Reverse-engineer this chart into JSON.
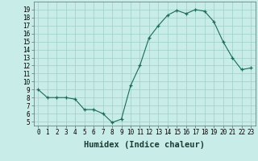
{
  "x": [
    0,
    1,
    2,
    3,
    4,
    5,
    6,
    7,
    8,
    9,
    10,
    11,
    12,
    13,
    14,
    15,
    16,
    17,
    18,
    19,
    20,
    21,
    22,
    23
  ],
  "y": [
    9.0,
    8.0,
    8.0,
    8.0,
    7.8,
    6.5,
    6.5,
    6.0,
    4.9,
    5.3,
    9.5,
    12.0,
    15.5,
    17.0,
    18.3,
    18.9,
    18.5,
    19.0,
    18.8,
    17.5,
    15.0,
    13.0,
    11.5,
    11.7
  ],
  "xlabel": "Humidex (Indice chaleur)",
  "yticks": [
    5,
    6,
    7,
    8,
    9,
    10,
    11,
    12,
    13,
    14,
    15,
    16,
    17,
    18,
    19
  ],
  "ylim": [
    4.5,
    20.0
  ],
  "xlim": [
    -0.5,
    23.5
  ],
  "xticks": [
    0,
    1,
    2,
    3,
    4,
    5,
    6,
    7,
    8,
    9,
    10,
    11,
    12,
    13,
    14,
    15,
    16,
    17,
    18,
    19,
    20,
    21,
    22,
    23
  ],
  "line_color": "#1a6b5a",
  "marker": "+",
  "bg_color": "#c8ece8",
  "grid_color": "#a0cfc8",
  "tick_label_fontsize": 5.5,
  "xlabel_fontsize": 7.5
}
